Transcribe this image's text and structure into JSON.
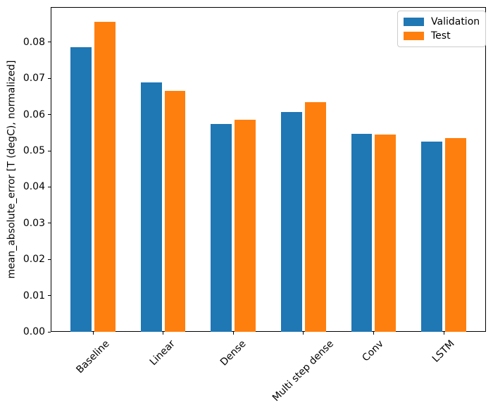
{
  "chart_data": {
    "type": "bar",
    "categories": [
      "Baseline",
      "Linear",
      "Dense",
      "Multi step dense",
      "Conv",
      "LSTM"
    ],
    "series": [
      {
        "name": "Validation",
        "color": "#1f77b4",
        "values": [
          0.0787,
          0.0689,
          0.0574,
          0.0607,
          0.0546,
          0.0526
        ]
      },
      {
        "name": "Test",
        "color": "#ff7f0e",
        "values": [
          0.0856,
          0.0666,
          0.0585,
          0.0634,
          0.0544,
          0.0535
        ]
      }
    ],
    "ylabel": "mean_absolute_error [T (degC), normalized]",
    "ylim": [
      0,
      0.0897
    ],
    "yticks": [
      0,
      0.01,
      0.02,
      0.03,
      0.04,
      0.05,
      0.06,
      0.07,
      0.08
    ],
    "ytick_labels": [
      "0.00",
      "0.01",
      "0.02",
      "0.03",
      "0.04",
      "0.05",
      "0.06",
      "0.07",
      "0.08"
    ],
    "xtick_rotation": 45,
    "grid": false,
    "legend_position": "upper right",
    "bar_width_fraction": 0.3,
    "axis_color": "#000000",
    "legend_border_color": "#cccccc"
  }
}
